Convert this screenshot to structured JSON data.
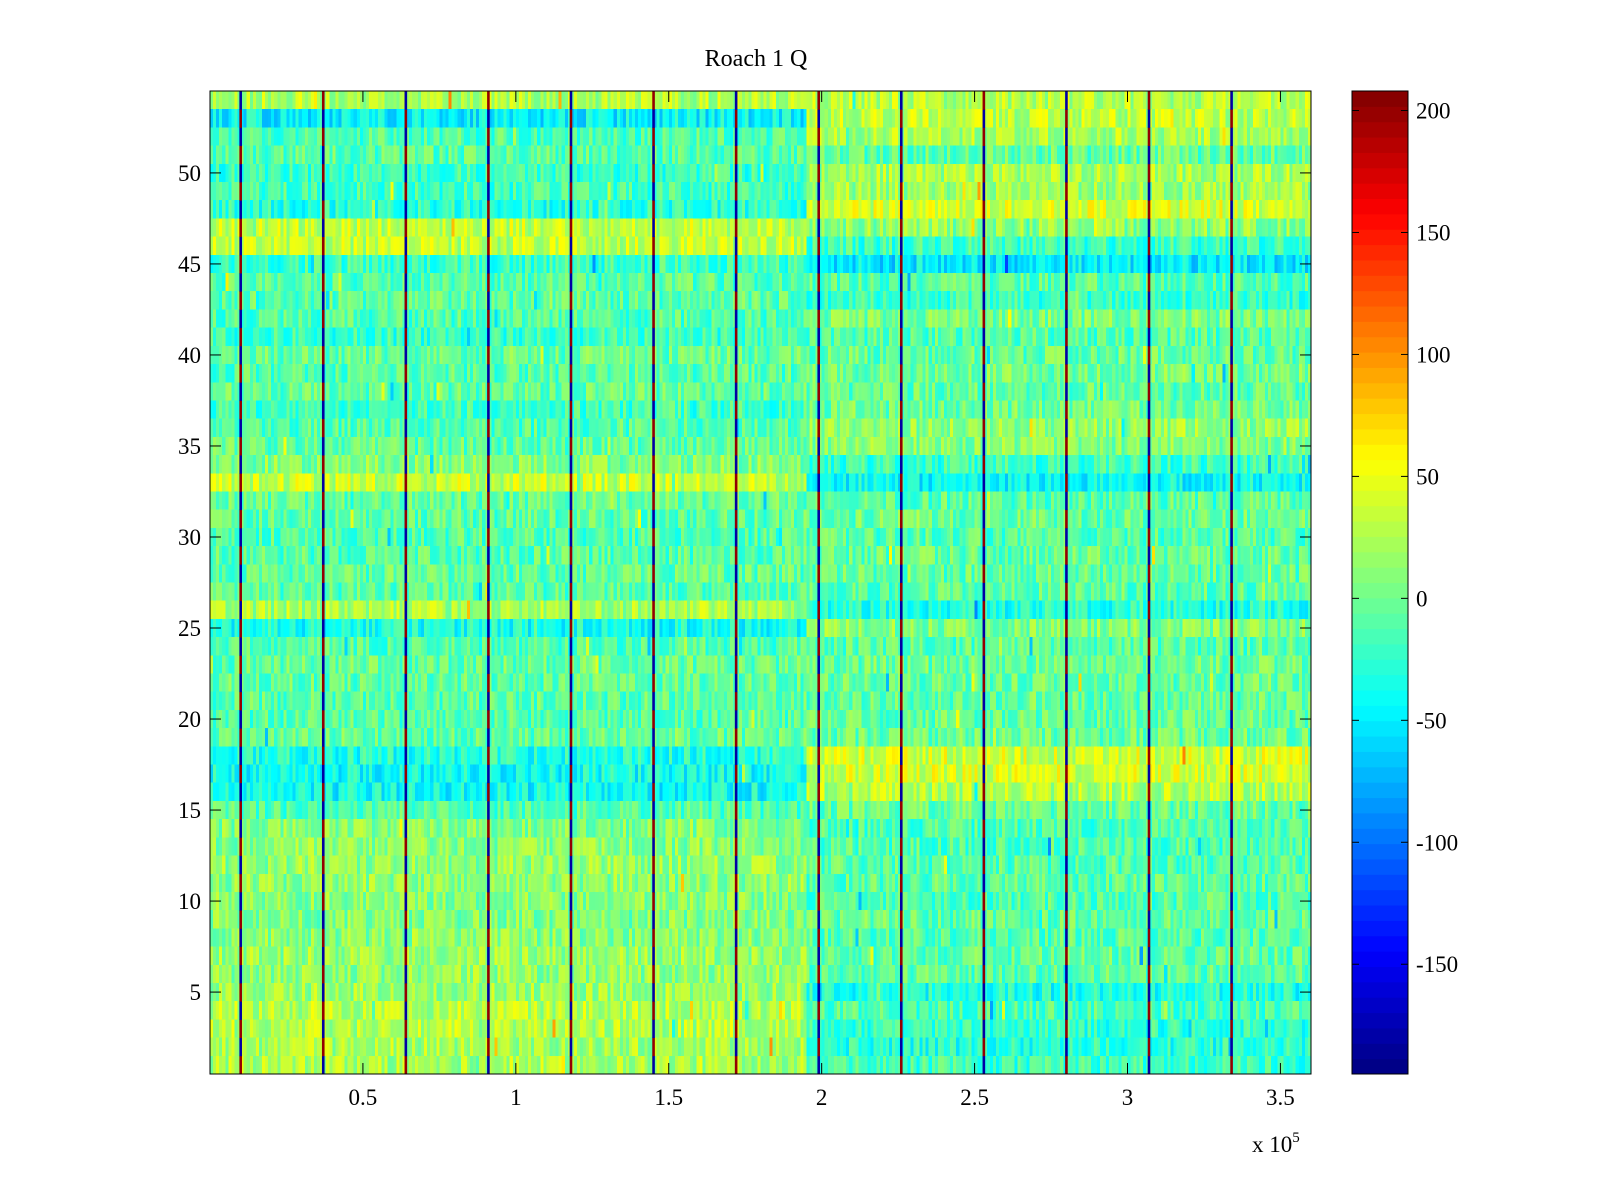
{
  "chart_data": {
    "type": "heatmap",
    "title": "Roach 1 Q",
    "xlabel": "",
    "ylabel": "",
    "x_range": [
      0,
      3.6
    ],
    "x_exponent_label": "x 10",
    "x_exponent_power": "5",
    "xticks": [
      {
        "value": 0.5,
        "label": "0.5"
      },
      {
        "value": 1,
        "label": "1"
      },
      {
        "value": 1.5,
        "label": "1.5"
      },
      {
        "value": 2,
        "label": "2"
      },
      {
        "value": 2.5,
        "label": "2.5"
      },
      {
        "value": 3,
        "label": "3"
      },
      {
        "value": 3.5,
        "label": "3.5"
      }
    ],
    "y_range": [
      0.5,
      54.5
    ],
    "yticks": [
      {
        "value": 5,
        "label": "5"
      },
      {
        "value": 10,
        "label": "10"
      },
      {
        "value": 15,
        "label": "15"
      },
      {
        "value": 20,
        "label": "20"
      },
      {
        "value": 25,
        "label": "25"
      },
      {
        "value": 30,
        "label": "30"
      },
      {
        "value": 35,
        "label": "35"
      },
      {
        "value": 40,
        "label": "40"
      },
      {
        "value": 45,
        "label": "45"
      },
      {
        "value": 50,
        "label": "50"
      }
    ],
    "rows": 54,
    "colormap": "jet",
    "clim": [
      -195,
      208
    ],
    "colorbar_ticks": [
      {
        "value": 200,
        "label": "200"
      },
      {
        "value": 150,
        "label": "150"
      },
      {
        "value": 100,
        "label": "100"
      },
      {
        "value": 50,
        "label": "50"
      },
      {
        "value": 0,
        "label": "0"
      },
      {
        "value": -50,
        "label": "-50"
      },
      {
        "value": -100,
        "label": "-100"
      },
      {
        "value": -150,
        "label": "-150"
      }
    ],
    "segment_boundaries_x": [
      0.1,
      0.37,
      0.64,
      0.91,
      1.18,
      1.45,
      1.72,
      1.99,
      2.26,
      2.53,
      2.8,
      3.07,
      3.34
    ],
    "row_offsets_first_half": [
      24,
      22,
      26,
      28,
      18,
      14,
      16,
      10,
      8,
      10,
      12,
      14,
      10,
      8,
      -12,
      -40,
      -38,
      -30,
      -5,
      -10,
      -8,
      -6,
      -4,
      -12,
      -35,
      22,
      -10,
      -6,
      -10,
      -12,
      -8,
      -5,
      35,
      8,
      -6,
      -12,
      -18,
      -6,
      -10,
      -4,
      -22,
      -12,
      -8,
      -10,
      -20,
      32,
      34,
      -28,
      -18,
      -22,
      -8,
      -14,
      -45,
      25
    ],
    "row_offsets_second_half": [
      -20,
      -28,
      -24,
      -14,
      -32,
      -8,
      -6,
      -10,
      -5,
      -12,
      -8,
      -10,
      -12,
      -14,
      -4,
      26,
      40,
      40,
      -2,
      -5,
      -6,
      -4,
      -2,
      -10,
      8,
      -30,
      -8,
      -6,
      -4,
      -10,
      -2,
      -8,
      -42,
      -20,
      10,
      14,
      0,
      -6,
      2,
      -4,
      -10,
      4,
      -22,
      -10,
      -50,
      -20,
      12,
      40,
      18,
      22,
      -6,
      24,
      30,
      28
    ],
    "transition_x": 1.95,
    "noise_amplitude": 28,
    "seam_values": [
      -180,
      200
    ]
  }
}
